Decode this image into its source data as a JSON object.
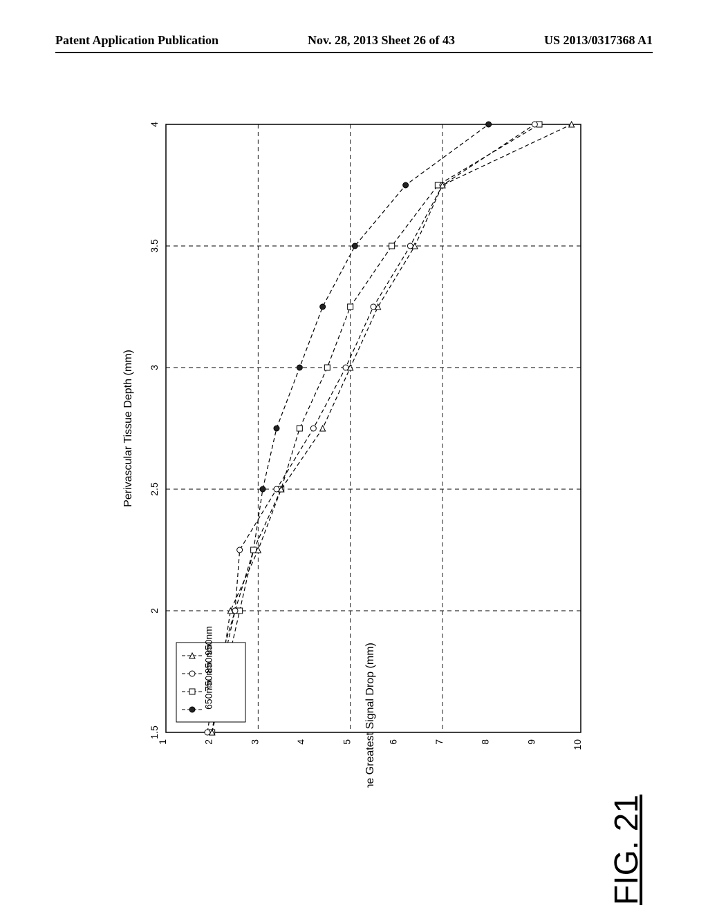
{
  "header": {
    "left": "Patent Application Publication",
    "center": "Nov. 28, 2013  Sheet 26 of 43",
    "right": "US 2013/0317368 A1"
  },
  "figure_label": "FIG. 21",
  "chart": {
    "type": "line",
    "x_label": "Perivascular Tissue Depth (mm)",
    "y_label": "Spacing Distance with the Greatest Signal Drop (mm)",
    "xlim": [
      1.5,
      4.0
    ],
    "ylim": [
      1,
      10
    ],
    "xticks": [
      1.5,
      2.0,
      2.5,
      3.0,
      3.5,
      4.0
    ],
    "yticks": [
      1,
      2,
      3,
      4,
      5,
      6,
      7,
      8,
      9,
      10
    ],
    "grid_x_major": [
      1.5,
      2.0,
      2.5,
      3.0,
      3.5,
      4.0
    ],
    "grid_y_major": [
      1,
      3,
      5,
      7,
      10
    ],
    "background_color": "#ffffff",
    "grid_color": "#000000",
    "axis_color": "#000000",
    "tick_fontsize": 14,
    "label_fontsize": 16,
    "legend_fontsize": 14,
    "line_color": "#000000",
    "line_width": 1.2,
    "marker_stroke": "#000000",
    "marker_size": 8,
    "series": [
      {
        "name": "650nm",
        "marker": "filled-circle",
        "fill": "#222222",
        "x": [
          1.5,
          1.75,
          2.0,
          2.25,
          2.5,
          2.75,
          3.0,
          3.25,
          3.5,
          3.75,
          4.0
        ],
        "y": [
          2.0,
          2.2,
          2.5,
          2.9,
          3.1,
          3.4,
          3.9,
          4.4,
          5.1,
          6.2,
          8.0
        ]
      },
      {
        "name": "750nm",
        "marker": "open-square",
        "fill": "#ffffff",
        "x": [
          1.5,
          1.75,
          2.0,
          2.25,
          2.5,
          2.75,
          3.0,
          3.25,
          3.5,
          3.75,
          4.0
        ],
        "y": [
          2.0,
          2.3,
          2.6,
          2.9,
          3.5,
          3.9,
          4.5,
          5.0,
          5.9,
          6.9,
          9.1
        ]
      },
      {
        "name": "850nm",
        "marker": "open-circle",
        "fill": "#ffffff",
        "x": [
          1.5,
          1.75,
          2.0,
          2.25,
          2.5,
          2.75,
          3.0,
          3.25,
          3.5,
          3.75,
          4.0
        ],
        "y": [
          1.9,
          2.1,
          2.5,
          2.6,
          3.4,
          4.2,
          4.9,
          5.5,
          6.3,
          7.0,
          9.0
        ]
      },
      {
        "name": "950nm",
        "marker": "open-triangle",
        "fill": "#ffffff",
        "x": [
          1.5,
          1.75,
          2.0,
          2.25,
          2.5,
          2.75,
          3.0,
          3.25,
          3.5,
          3.75,
          4.0
        ],
        "y": [
          2.0,
          2.2,
          2.4,
          3.0,
          3.5,
          4.4,
          5.0,
          5.6,
          6.4,
          7.0,
          9.8
        ]
      }
    ],
    "legend_position": "top-left-inside"
  }
}
